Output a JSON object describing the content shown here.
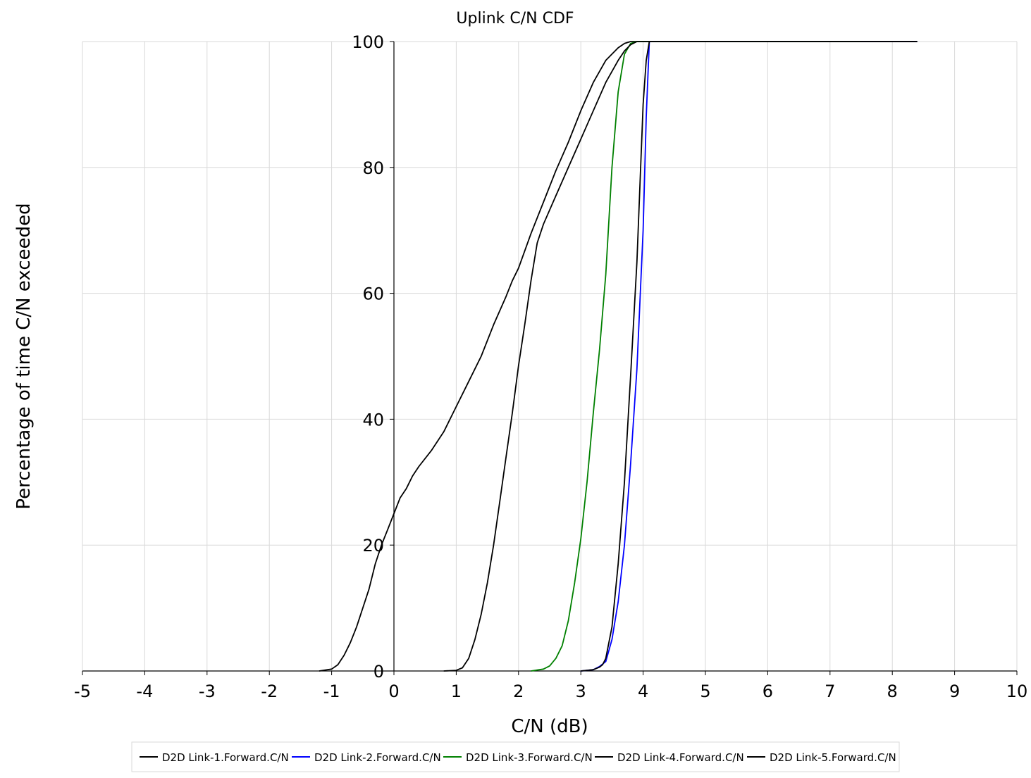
{
  "chart_data": {
    "type": "line",
    "title": "Uplink C/N CDF",
    "xlabel": "C/N (dB)",
    "ylabel": "Percentage of time C/N exceeded",
    "xlim": [
      -5,
      10
    ],
    "ylim": [
      0,
      100
    ],
    "xticks": [
      -5,
      -4,
      -3,
      -2,
      -1,
      0,
      1,
      2,
      3,
      4,
      5,
      6,
      7,
      8,
      9,
      10
    ],
    "yticks": [
      0,
      20,
      40,
      60,
      80,
      100
    ],
    "grid": true,
    "legend_position": "bottom",
    "series": [
      {
        "name": "D2D Link-1.Forward.C/N",
        "color": "#000000",
        "x": [
          -1.2,
          -1.0,
          -0.9,
          -0.8,
          -0.7,
          -0.6,
          -0.5,
          -0.4,
          -0.3,
          -0.2,
          -0.1,
          0.0,
          0.1,
          0.2,
          0.3,
          0.4,
          0.6,
          0.8,
          1.0,
          1.2,
          1.4,
          1.6,
          1.8,
          1.9,
          2.0,
          2.2,
          2.4,
          2.6,
          2.8,
          3.0,
          3.2,
          3.4,
          3.6,
          3.7,
          3.8,
          3.9,
          4.1,
          6.0,
          8.4
        ],
        "y": [
          0,
          0.3,
          1,
          2.5,
          4.5,
          7,
          10,
          13,
          17,
          20,
          22.5,
          25,
          27.5,
          29,
          31,
          32.5,
          35,
          38,
          42,
          46,
          50,
          55,
          59.5,
          62,
          64,
          69.5,
          74.5,
          79.5,
          84,
          89,
          93.5,
          97,
          99,
          99.7,
          100,
          100,
          100,
          100,
          100
        ]
      },
      {
        "name": "D2D Link-2.Forward.C/N",
        "color": "#0000ff",
        "x": [
          3.0,
          3.2,
          3.3,
          3.4,
          3.5,
          3.6,
          3.7,
          3.8,
          3.9,
          4.0,
          4.05,
          4.1,
          5.0,
          7.0,
          8.4
        ],
        "y": [
          0,
          0.2,
          0.7,
          1.5,
          5,
          11,
          20,
          33,
          48,
          70,
          88,
          100,
          100,
          100,
          100
        ]
      },
      {
        "name": "D2D Link-3.Forward.C/N",
        "color": "#008000",
        "x": [
          2.2,
          2.4,
          2.5,
          2.6,
          2.7,
          2.8,
          2.9,
          3.0,
          3.1,
          3.2,
          3.3,
          3.4,
          3.5,
          3.6,
          3.7,
          3.8,
          3.9,
          4.0,
          5.0,
          6.1,
          7.5
        ],
        "y": [
          0,
          0.3,
          0.8,
          2,
          4,
          8,
          14,
          21,
          30,
          41,
          51,
          63,
          80,
          92,
          98,
          99.7,
          100,
          100,
          100,
          100,
          100
        ]
      },
      {
        "name": "D2D Link-4.Forward.C/N",
        "color": "#000000",
        "x": [
          3.0,
          3.2,
          3.3,
          3.35,
          3.4,
          3.5,
          3.6,
          3.7,
          3.8,
          3.9,
          4.0,
          4.05,
          4.1,
          5.0,
          8.4
        ],
        "y": [
          0,
          0.2,
          0.6,
          1,
          2,
          7,
          17,
          30,
          47,
          65,
          90,
          97,
          100,
          100,
          100
        ]
      },
      {
        "name": "D2D Link-5.Forward.C/N",
        "color": "#000000",
        "x": [
          0.8,
          1.0,
          1.1,
          1.2,
          1.3,
          1.4,
          1.5,
          1.6,
          1.7,
          1.8,
          1.9,
          2.0,
          2.1,
          2.2,
          2.3,
          2.4,
          2.6,
          2.8,
          3.0,
          3.2,
          3.4,
          3.6,
          3.7,
          3.8,
          3.9,
          4.0,
          5.0,
          8.4
        ],
        "y": [
          0,
          0.1,
          0.5,
          2,
          5,
          9,
          14,
          20,
          27,
          34,
          41,
          48.5,
          55,
          62,
          68,
          71,
          75.5,
          80,
          84.5,
          89,
          93.5,
          97,
          98.5,
          99.5,
          100,
          100,
          100,
          100
        ]
      }
    ]
  }
}
